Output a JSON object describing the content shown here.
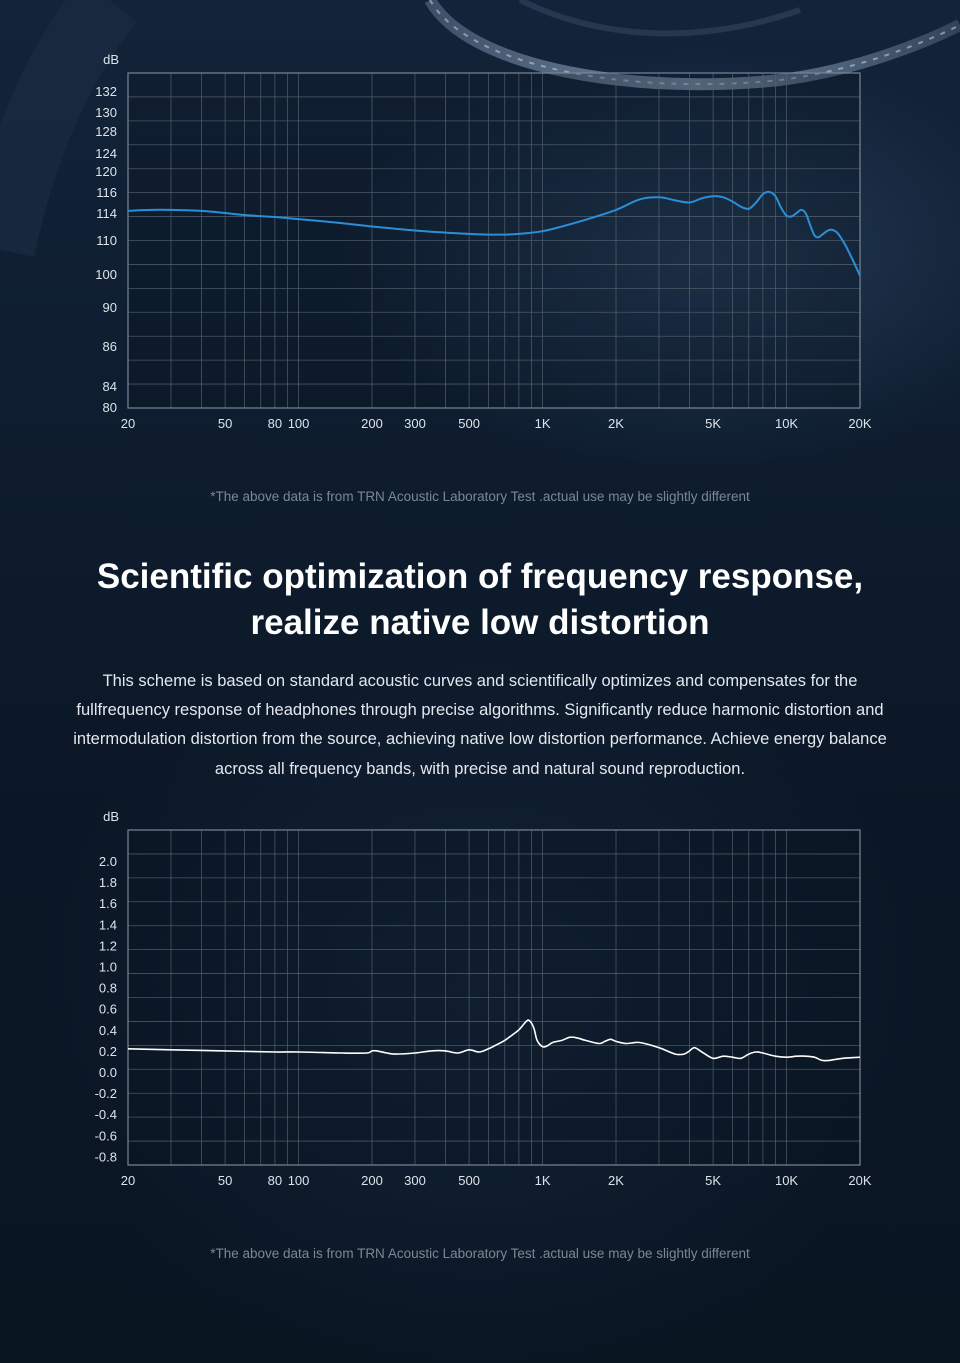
{
  "colors": {
    "background": "#0b1624",
    "chart1_line": "#2a8fd6",
    "chart2_line": "#ffffff",
    "grid": "#56606c",
    "tick_text": "#dde3ea"
  },
  "headline": {
    "line1": "Scientific optimization of frequency response,",
    "line2": "realize native low distortion"
  },
  "body_text": "This scheme is based on standard acoustic curves and scientifically optimizes and compensates for the fullfrequency response of headphones through precise algorithms. Significantly reduce harmonic distortion and intermodulation distortion from the source, achieving native low distortion performance. Achieve energy balance across all frequency bands, with precise and natural sound reproduction.",
  "notes": {
    "chart1": "*The above data is from TRN Acoustic Laboratory Test .actual use may be slightly different",
    "chart2": "*The above data is from TRN Acoustic Laboratory Test .actual use may be slightly different"
  },
  "chart_data": [
    {
      "type": "line",
      "title": "",
      "xlabel": "",
      "ylabel": "dB",
      "x_scale": "log",
      "xlim": [
        20,
        20000
      ],
      "grid": true,
      "legend": "none",
      "x_ticks": [
        {
          "value": 20,
          "label": "20"
        },
        {
          "value": 50,
          "label": "50"
        },
        {
          "value": 80,
          "label": "80"
        },
        {
          "value": 100,
          "label": "100"
        },
        {
          "value": 200,
          "label": "200"
        },
        {
          "value": 300,
          "label": "300"
        },
        {
          "value": 500,
          "label": "500"
        },
        {
          "value": 1000,
          "label": "1K"
        },
        {
          "value": 2000,
          "label": "2K"
        },
        {
          "value": 5000,
          "label": "5K"
        },
        {
          "value": 10000,
          "label": "10K"
        },
        {
          "value": 20000,
          "label": "20K"
        }
      ],
      "y_ticks": [
        "132",
        "130",
        "128",
        "124",
        "120",
        "116",
        "114",
        "110",
        "100",
        "90",
        "86",
        "84",
        "80"
      ],
      "series": [
        {
          "x": [
            20,
            25,
            30,
            40,
            50,
            60,
            80,
            100,
            150,
            200,
            300,
            400,
            500,
            600,
            700,
            800,
            1000,
            1200,
            1500,
            2000,
            2500,
            3000,
            3500,
            4000,
            4500,
            5000,
            5500,
            6000,
            6500,
            7000,
            7500,
            8000,
            8500,
            9000,
            9500,
            10000,
            10500,
            11000,
            11500,
            12000,
            12500,
            13000,
            13500,
            14000,
            15000,
            16000,
            17000,
            18000,
            19000,
            20000
          ],
          "y": [
            114.2,
            114.3,
            114.3,
            114.2,
            114.0,
            113.7,
            113.4,
            113.1,
            112.5,
            112.0,
            111.4,
            111.1,
            110.9,
            110.8,
            110.8,
            110.9,
            111.3,
            112.0,
            113.0,
            114.3,
            115.3,
            115.5,
            115.2,
            115.0,
            115.4,
            115.6,
            115.5,
            115.1,
            114.6,
            114.4,
            115.0,
            115.8,
            116.0,
            115.6,
            114.5,
            113.6,
            113.5,
            114.0,
            114.3,
            113.9,
            112.2,
            110.7,
            110.4,
            110.8,
            111.5,
            111.2,
            109.8,
            106.5,
            103.0,
            99.5
          ]
        }
      ]
    },
    {
      "type": "line",
      "title": "",
      "xlabel": "",
      "ylabel": "dB",
      "x_scale": "log",
      "xlim": [
        20,
        20000
      ],
      "ylim": [
        -0.8,
        2.0
      ],
      "grid": true,
      "legend": "none",
      "x_ticks": [
        {
          "value": 20,
          "label": "20"
        },
        {
          "value": 50,
          "label": "50"
        },
        {
          "value": 80,
          "label": "80"
        },
        {
          "value": 100,
          "label": "100"
        },
        {
          "value": 200,
          "label": "200"
        },
        {
          "value": 300,
          "label": "300"
        },
        {
          "value": 500,
          "label": "500"
        },
        {
          "value": 1000,
          "label": "1K"
        },
        {
          "value": 2000,
          "label": "2K"
        },
        {
          "value": 5000,
          "label": "5K"
        },
        {
          "value": 10000,
          "label": "10K"
        },
        {
          "value": 20000,
          "label": "20K"
        }
      ],
      "y_ticks": [
        "2.0",
        "1.8",
        "1.6",
        "1.4",
        "1.2",
        "1.0",
        "0.8",
        "0.6",
        "0.4",
        "0.2",
        "0.0",
        "-0.2",
        "-0.4",
        "-0.6",
        "-0.8"
      ],
      "series": [
        {
          "x": [
            20,
            30,
            50,
            80,
            100,
            150,
            190,
            200,
            210,
            230,
            250,
            300,
            350,
            400,
            450,
            500,
            550,
            600,
            650,
            700,
            750,
            800,
            850,
            880,
            920,
            950,
            1000,
            1050,
            1100,
            1200,
            1300,
            1400,
            1500,
            1700,
            1800,
            1900,
            2000,
            2200,
            2500,
            3000,
            3500,
            3800,
            4000,
            4200,
            4500,
            5000,
            5500,
            6000,
            6500,
            7000,
            7500,
            8000,
            9000,
            10000,
            11000,
            12000,
            13000,
            14000,
            15000,
            17000,
            20000
          ],
          "y": [
            0.22,
            0.21,
            0.2,
            0.19,
            0.19,
            0.18,
            0.18,
            0.2,
            0.2,
            0.18,
            0.17,
            0.18,
            0.2,
            0.2,
            0.18,
            0.21,
            0.19,
            0.22,
            0.26,
            0.3,
            0.35,
            0.4,
            0.47,
            0.49,
            0.42,
            0.3,
            0.24,
            0.25,
            0.28,
            0.3,
            0.33,
            0.32,
            0.3,
            0.27,
            0.29,
            0.31,
            0.29,
            0.27,
            0.28,
            0.23,
            0.17,
            0.17,
            0.2,
            0.23,
            0.19,
            0.13,
            0.15,
            0.14,
            0.13,
            0.17,
            0.19,
            0.18,
            0.15,
            0.14,
            0.15,
            0.15,
            0.14,
            0.11,
            0.11,
            0.13,
            0.14
          ]
        }
      ]
    }
  ]
}
